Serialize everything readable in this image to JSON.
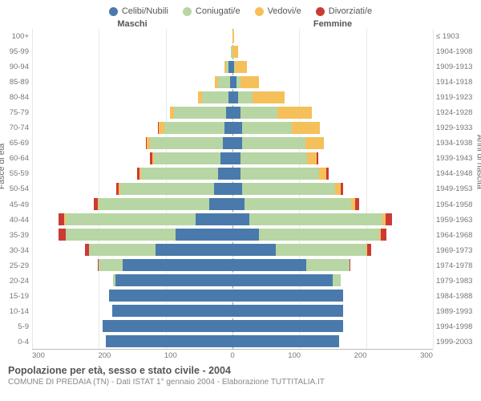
{
  "legend": [
    {
      "label": "Celibi/Nubili",
      "color": "#4a7aab"
    },
    {
      "label": "Coniugati/e",
      "color": "#b7d6a3"
    },
    {
      "label": "Vedovi/e",
      "color": "#f5c05a"
    },
    {
      "label": "Divorziati/e",
      "color": "#cc3b33"
    }
  ],
  "headers": {
    "male": "Maschi",
    "female": "Femmine"
  },
  "y_left_label": "Fasce di età",
  "y_right_label": "Anni di nascita",
  "colors": {
    "single": "#4a7aab",
    "married": "#b7d6a3",
    "widowed": "#f5c05a",
    "divorced": "#cc3b33",
    "grid": "#e8e8e8",
    "center": "#999999",
    "background": "#ffffff"
  },
  "x_axis": {
    "max": 300,
    "ticks": [
      300,
      200,
      100,
      0,
      100,
      200,
      300
    ]
  },
  "age_bands": [
    "100+",
    "95-99",
    "90-94",
    "85-89",
    "80-84",
    "75-79",
    "70-74",
    "65-69",
    "60-64",
    "55-59",
    "50-54",
    "45-49",
    "40-44",
    "35-39",
    "30-34",
    "25-29",
    "20-24",
    "15-19",
    "10-14",
    "5-9",
    "0-4"
  ],
  "birth_years": [
    "≤ 1903",
    "1904-1908",
    "1909-1913",
    "1914-1918",
    "1919-1923",
    "1924-1928",
    "1929-1933",
    "1934-1938",
    "1939-1943",
    "1944-1948",
    "1949-1953",
    "1954-1958",
    "1959-1963",
    "1964-1968",
    "1969-1973",
    "1974-1978",
    "1979-1983",
    "1984-1988",
    "1989-1993",
    "1994-1998",
    "1999-2003"
  ],
  "data": [
    {
      "m": {
        "single": 0,
        "married": 0,
        "widowed": 0,
        "divorced": 0
      },
      "f": {
        "single": 0,
        "married": 0,
        "widowed": 2,
        "divorced": 0
      }
    },
    {
      "m": {
        "single": 0,
        "married": 2,
        "widowed": 0,
        "divorced": 0
      },
      "f": {
        "single": 0,
        "married": 0,
        "widowed": 8,
        "divorced": 0
      }
    },
    {
      "m": {
        "single": 6,
        "married": 4,
        "widowed": 2,
        "divorced": 0
      },
      "f": {
        "single": 2,
        "married": 2,
        "widowed": 18,
        "divorced": 0
      }
    },
    {
      "m": {
        "single": 4,
        "married": 18,
        "widowed": 4,
        "divorced": 0
      },
      "f": {
        "single": 6,
        "married": 6,
        "widowed": 28,
        "divorced": 0
      }
    },
    {
      "m": {
        "single": 6,
        "married": 40,
        "widowed": 6,
        "divorced": 0
      },
      "f": {
        "single": 8,
        "married": 22,
        "widowed": 48,
        "divorced": 0
      }
    },
    {
      "m": {
        "single": 10,
        "married": 78,
        "widowed": 6,
        "divorced": 0
      },
      "f": {
        "single": 12,
        "married": 55,
        "widowed": 52,
        "divorced": 0
      }
    },
    {
      "m": {
        "single": 12,
        "married": 90,
        "widowed": 8,
        "divorced": 2
      },
      "f": {
        "single": 14,
        "married": 75,
        "widowed": 42,
        "divorced": 0
      }
    },
    {
      "m": {
        "single": 14,
        "married": 110,
        "widowed": 4,
        "divorced": 2
      },
      "f": {
        "single": 14,
        "married": 95,
        "widowed": 28,
        "divorced": 0
      }
    },
    {
      "m": {
        "single": 18,
        "married": 100,
        "widowed": 2,
        "divorced": 4
      },
      "f": {
        "single": 12,
        "married": 100,
        "widowed": 14,
        "divorced": 2
      }
    },
    {
      "m": {
        "single": 22,
        "married": 115,
        "widowed": 2,
        "divorced": 4
      },
      "f": {
        "single": 12,
        "married": 118,
        "widowed": 10,
        "divorced": 4
      }
    },
    {
      "m": {
        "single": 28,
        "married": 140,
        "widowed": 2,
        "divorced": 4
      },
      "f": {
        "single": 14,
        "married": 140,
        "widowed": 8,
        "divorced": 4
      }
    },
    {
      "m": {
        "single": 35,
        "married": 165,
        "widowed": 2,
        "divorced": 6
      },
      "f": {
        "single": 18,
        "married": 160,
        "widowed": 6,
        "divorced": 6
      }
    },
    {
      "m": {
        "single": 55,
        "married": 195,
        "widowed": 2,
        "divorced": 8
      },
      "f": {
        "single": 25,
        "married": 200,
        "widowed": 4,
        "divorced": 10
      }
    },
    {
      "m": {
        "single": 85,
        "married": 165,
        "widowed": 0,
        "divorced": 10
      },
      "f": {
        "single": 40,
        "married": 180,
        "widowed": 2,
        "divorced": 8
      }
    },
    {
      "m": {
        "single": 115,
        "married": 100,
        "widowed": 0,
        "divorced": 6
      },
      "f": {
        "single": 65,
        "married": 135,
        "widowed": 2,
        "divorced": 6
      }
    },
    {
      "m": {
        "single": 165,
        "married": 35,
        "widowed": 0,
        "divorced": 2
      },
      "f": {
        "single": 110,
        "married": 65,
        "widowed": 0,
        "divorced": 2
      }
    },
    {
      "m": {
        "single": 175,
        "married": 4,
        "widowed": 0,
        "divorced": 0
      },
      "f": {
        "single": 150,
        "married": 12,
        "widowed": 0,
        "divorced": 0
      }
    },
    {
      "m": {
        "single": 185,
        "married": 0,
        "widowed": 0,
        "divorced": 0
      },
      "f": {
        "single": 165,
        "married": 0,
        "widowed": 0,
        "divorced": 0
      }
    },
    {
      "m": {
        "single": 180,
        "married": 0,
        "widowed": 0,
        "divorced": 0
      },
      "f": {
        "single": 165,
        "married": 0,
        "widowed": 0,
        "divorced": 0
      }
    },
    {
      "m": {
        "single": 195,
        "married": 0,
        "widowed": 0,
        "divorced": 0
      },
      "f": {
        "single": 165,
        "married": 0,
        "widowed": 0,
        "divorced": 0
      }
    },
    {
      "m": {
        "single": 190,
        "married": 0,
        "widowed": 0,
        "divorced": 0
      },
      "f": {
        "single": 160,
        "married": 0,
        "widowed": 0,
        "divorced": 0
      }
    }
  ],
  "footer": {
    "title": "Popolazione per età, sesso e stato civile - 2004",
    "subtitle": "COMUNE DI PREDAIA (TN) - Dati ISTAT 1° gennaio 2004 - Elaborazione TUTTITALIA.IT"
  }
}
